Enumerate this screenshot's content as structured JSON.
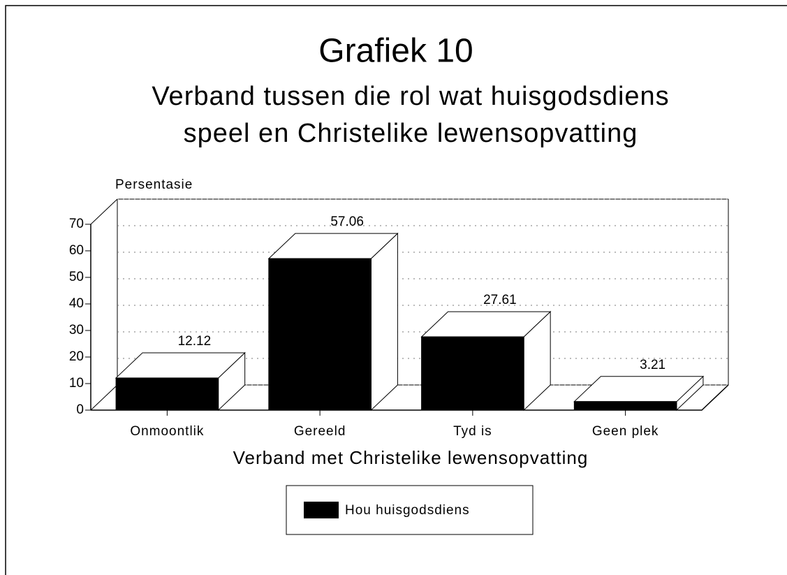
{
  "chart_data": {
    "type": "bar3d",
    "title": "Grafiek 10",
    "subtitle": [
      "Verband tussen die rol wat huisgodsdiens",
      "speel en Christelike lewensopvatting"
    ],
    "y_axis_label": "Persentasie",
    "x_axis_label": "Verband met Christelike lewensopvatting",
    "categories": [
      "Onmoontlik",
      "Gereeld",
      "Tyd is",
      "Geen plek"
    ],
    "series": [
      {
        "name": "Hou huisgodsdiens",
        "color": "#000000",
        "values": [
          12.12,
          57.06,
          27.61,
          3.21
        ]
      }
    ],
    "ylim": [
      0,
      70
    ],
    "yticks": [
      0,
      10,
      20,
      30,
      40,
      50,
      60,
      70
    ],
    "grid": true,
    "legend": "bottom"
  }
}
